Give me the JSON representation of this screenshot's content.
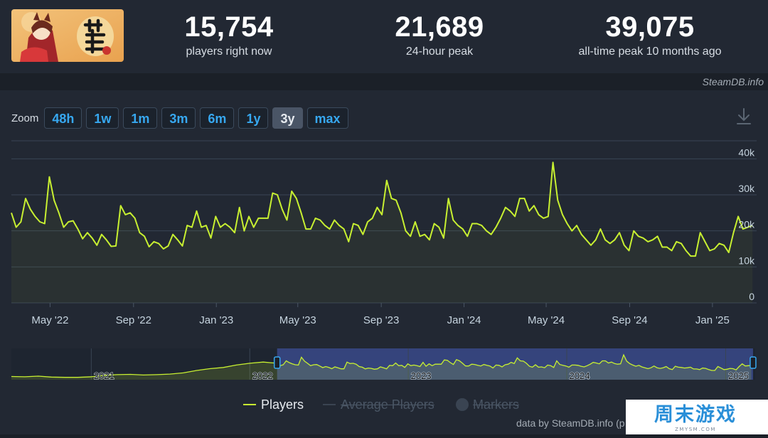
{
  "stats": {
    "current": {
      "value": "15,754",
      "label": "players right now"
    },
    "peak24": {
      "value": "21,689",
      "label": "24-hour peak"
    },
    "alltime": {
      "value": "39,075",
      "label": "all-time peak 10 months ago"
    }
  },
  "source_label": "SteamDB.info",
  "zoom": {
    "label": "Zoom",
    "options": [
      "48h",
      "1w",
      "1m",
      "3m",
      "6m",
      "1y",
      "3y",
      "max"
    ],
    "active": "3y"
  },
  "legend": {
    "players": "Players",
    "average": "Average Players",
    "markers": "Markers"
  },
  "credit": "data by SteamDB.info (p",
  "watermark": {
    "main": "周末游戏",
    "sub": "ZMYSM.COM"
  },
  "colors": {
    "players": "#c8f031",
    "accent_blue": "#37a8f0",
    "nav_selection": "#3a4a8a"
  },
  "icons": {
    "download": "download-icon"
  },
  "chart_data": {
    "type": "line",
    "title": "",
    "xlabel": "",
    "ylabel": "",
    "ylim": [
      0,
      45000
    ],
    "y_ticks": [
      0,
      10000,
      20000,
      30000,
      40000
    ],
    "y_tick_labels": [
      "0",
      "10k",
      "20k",
      "30k",
      "40k"
    ],
    "x_tick_labels": [
      {
        "date": "2022-05-01",
        "label": "May '22"
      },
      {
        "date": "2022-09-01",
        "label": "Sep '22"
      },
      {
        "date": "2023-01-01",
        "label": "Jan '23"
      },
      {
        "date": "2023-05-01",
        "label": "May '23"
      },
      {
        "date": "2023-09-01",
        "label": "Sep '23"
      },
      {
        "date": "2024-01-01",
        "label": "Jan '24"
      },
      {
        "date": "2024-05-01",
        "label": "May '24"
      },
      {
        "date": "2024-09-01",
        "label": "Sep '24"
      },
      {
        "date": "2025-01-01",
        "label": "Jan '25"
      }
    ],
    "x_range": [
      "2022-03-05",
      "2025-03-05"
    ],
    "grid": true,
    "legend_position": "bottom",
    "series": [
      {
        "name": "Players",
        "color": "#c8f031",
        "points": [
          [
            "2022-03-05",
            25000
          ],
          [
            "2022-03-12",
            21000
          ],
          [
            "2022-03-19",
            22500
          ],
          [
            "2022-03-26",
            29000
          ],
          [
            "2022-04-02",
            26000
          ],
          [
            "2022-04-09",
            24000
          ],
          [
            "2022-04-16",
            22500
          ],
          [
            "2022-04-23",
            22000
          ],
          [
            "2022-04-30",
            35000
          ],
          [
            "2022-05-07",
            28500
          ],
          [
            "2022-05-14",
            25000
          ],
          [
            "2022-05-21",
            21000
          ],
          [
            "2022-05-28",
            22500
          ],
          [
            "2022-06-04",
            22800
          ],
          [
            "2022-06-11",
            20500
          ],
          [
            "2022-06-18",
            17800
          ],
          [
            "2022-06-25",
            19500
          ],
          [
            "2022-07-02",
            18000
          ],
          [
            "2022-07-09",
            16000
          ],
          [
            "2022-07-16",
            19000
          ],
          [
            "2022-07-23",
            17500
          ],
          [
            "2022-07-30",
            15700
          ],
          [
            "2022-08-06",
            15800
          ],
          [
            "2022-08-13",
            27000
          ],
          [
            "2022-08-20",
            24500
          ],
          [
            "2022-08-27",
            25000
          ],
          [
            "2022-09-03",
            23500
          ],
          [
            "2022-09-10",
            19500
          ],
          [
            "2022-09-17",
            18500
          ],
          [
            "2022-09-24",
            15600
          ],
          [
            "2022-10-01",
            17000
          ],
          [
            "2022-10-08",
            16500
          ],
          [
            "2022-10-15",
            15000
          ],
          [
            "2022-10-22",
            15800
          ],
          [
            "2022-10-29",
            19000
          ],
          [
            "2022-11-05",
            17500
          ],
          [
            "2022-11-12",
            15800
          ],
          [
            "2022-11-19",
            21500
          ],
          [
            "2022-11-26",
            21000
          ],
          [
            "2022-12-03",
            25500
          ],
          [
            "2022-12-10",
            21000
          ],
          [
            "2022-12-17",
            21500
          ],
          [
            "2022-12-24",
            18000
          ],
          [
            "2022-12-31",
            24000
          ],
          [
            "2023-01-07",
            21000
          ],
          [
            "2023-01-14",
            22000
          ],
          [
            "2023-01-21",
            21000
          ],
          [
            "2023-01-28",
            19500
          ],
          [
            "2023-02-04",
            26500
          ],
          [
            "2023-02-11",
            20000
          ],
          [
            "2023-02-18",
            24000
          ],
          [
            "2023-02-25",
            21000
          ],
          [
            "2023-03-04",
            23500
          ],
          [
            "2023-03-11",
            23500
          ],
          [
            "2023-03-18",
            23500
          ],
          [
            "2023-03-25",
            30500
          ],
          [
            "2023-04-01",
            30000
          ],
          [
            "2023-04-08",
            26000
          ],
          [
            "2023-04-15",
            23000
          ],
          [
            "2023-04-22",
            31000
          ],
          [
            "2023-04-29",
            29000
          ],
          [
            "2023-05-06",
            25000
          ],
          [
            "2023-05-13",
            20500
          ],
          [
            "2023-05-20",
            20500
          ],
          [
            "2023-05-27",
            23500
          ],
          [
            "2023-06-03",
            23000
          ],
          [
            "2023-06-10",
            21500
          ],
          [
            "2023-06-17",
            20500
          ],
          [
            "2023-06-24",
            23000
          ],
          [
            "2023-07-01",
            21500
          ],
          [
            "2023-07-08",
            20500
          ],
          [
            "2023-07-15",
            17000
          ],
          [
            "2023-07-22",
            22000
          ],
          [
            "2023-07-29",
            21500
          ],
          [
            "2023-08-05",
            19000
          ],
          [
            "2023-08-12",
            22500
          ],
          [
            "2023-08-19",
            23500
          ],
          [
            "2023-08-26",
            26500
          ],
          [
            "2023-09-02",
            24500
          ],
          [
            "2023-09-09",
            34000
          ],
          [
            "2023-09-16",
            29000
          ],
          [
            "2023-09-23",
            28500
          ],
          [
            "2023-09-30",
            25000
          ],
          [
            "2023-10-07",
            20000
          ],
          [
            "2023-10-14",
            18500
          ],
          [
            "2023-10-21",
            22500
          ],
          [
            "2023-10-28",
            18500
          ],
          [
            "2023-11-04",
            19000
          ],
          [
            "2023-11-11",
            17500
          ],
          [
            "2023-11-18",
            22000
          ],
          [
            "2023-11-25",
            21000
          ],
          [
            "2023-12-02",
            18000
          ],
          [
            "2023-12-09",
            29000
          ],
          [
            "2023-12-16",
            23000
          ],
          [
            "2023-12-23",
            21500
          ],
          [
            "2023-12-30",
            20500
          ],
          [
            "2024-01-06",
            18500
          ],
          [
            "2024-01-13",
            22000
          ],
          [
            "2024-01-20",
            22000
          ],
          [
            "2024-01-27",
            21500
          ],
          [
            "2024-02-03",
            20000
          ],
          [
            "2024-02-10",
            19000
          ],
          [
            "2024-02-17",
            21000
          ],
          [
            "2024-02-24",
            23500
          ],
          [
            "2024-03-02",
            26500
          ],
          [
            "2024-03-09",
            25500
          ],
          [
            "2024-03-16",
            24000
          ],
          [
            "2024-03-23",
            29000
          ],
          [
            "2024-03-30",
            29000
          ],
          [
            "2024-04-06",
            25500
          ],
          [
            "2024-04-13",
            27000
          ],
          [
            "2024-04-20",
            24500
          ],
          [
            "2024-04-27",
            23500
          ],
          [
            "2024-05-04",
            24000
          ],
          [
            "2024-05-11",
            39000
          ],
          [
            "2024-05-18",
            28500
          ],
          [
            "2024-05-25",
            24500
          ],
          [
            "2024-06-01",
            22000
          ],
          [
            "2024-06-08",
            20000
          ],
          [
            "2024-06-15",
            21500
          ],
          [
            "2024-06-22",
            19000
          ],
          [
            "2024-06-29",
            17500
          ],
          [
            "2024-07-06",
            16000
          ],
          [
            "2024-07-13",
            17500
          ],
          [
            "2024-07-20",
            20500
          ],
          [
            "2024-07-27",
            17500
          ],
          [
            "2024-08-03",
            16500
          ],
          [
            "2024-08-10",
            17500
          ],
          [
            "2024-08-17",
            19500
          ],
          [
            "2024-08-24",
            16000
          ],
          [
            "2024-08-31",
            14500
          ],
          [
            "2024-09-07",
            20000
          ],
          [
            "2024-09-14",
            18500
          ],
          [
            "2024-09-21",
            18000
          ],
          [
            "2024-09-28",
            17000
          ],
          [
            "2024-10-05",
            17500
          ],
          [
            "2024-10-12",
            18500
          ],
          [
            "2024-10-19",
            15500
          ],
          [
            "2024-10-26",
            15500
          ],
          [
            "2024-11-02",
            14500
          ],
          [
            "2024-11-09",
            17000
          ],
          [
            "2024-11-16",
            16500
          ],
          [
            "2024-11-23",
            14500
          ],
          [
            "2024-11-30",
            13000
          ],
          [
            "2024-12-07",
            13000
          ],
          [
            "2024-12-14",
            19500
          ],
          [
            "2024-12-21",
            17000
          ],
          [
            "2024-12-28",
            14500
          ],
          [
            "2025-01-04",
            15000
          ],
          [
            "2025-01-11",
            16500
          ],
          [
            "2025-01-18",
            16000
          ],
          [
            "2025-01-25",
            14000
          ],
          [
            "2025-02-01",
            19500
          ],
          [
            "2025-02-08",
            24000
          ],
          [
            "2025-02-15",
            20500
          ],
          [
            "2025-02-22",
            21000
          ],
          [
            "2025-03-01",
            21500
          ]
        ]
      }
    ],
    "navigator": {
      "x_range": [
        "2020-07-01",
        "2025-03-10"
      ],
      "selection": [
        "2022-03-05",
        "2025-03-05"
      ],
      "year_labels": [
        {
          "date": "2021-01-01",
          "label": "2021"
        },
        {
          "date": "2022-01-01",
          "label": "2022"
        },
        {
          "date": "2023-01-01",
          "label": "2023"
        },
        {
          "date": "2024-01-01",
          "label": "2024"
        },
        {
          "date": "2025-01-01",
          "label": "2025"
        }
      ],
      "early_points": [
        [
          "2020-07-01",
          3000
        ],
        [
          "2020-08-01",
          2500
        ],
        [
          "2020-09-01",
          3500
        ],
        [
          "2020-10-01",
          2000
        ],
        [
          "2020-11-01",
          1500
        ],
        [
          "2020-12-01",
          1500
        ],
        [
          "2021-01-01",
          2500
        ],
        [
          "2021-02-01",
          5000
        ],
        [
          "2021-03-01",
          6000
        ],
        [
          "2021-04-01",
          6500
        ],
        [
          "2021-05-01",
          5500
        ],
        [
          "2021-06-01",
          6000
        ],
        [
          "2021-07-01",
          7000
        ],
        [
          "2021-08-01",
          9000
        ],
        [
          "2021-09-01",
          13000
        ],
        [
          "2021-10-01",
          16000
        ],
        [
          "2021-11-01",
          18000
        ],
        [
          "2021-12-01",
          22000
        ],
        [
          "2022-01-01",
          25000
        ],
        [
          "2022-02-01",
          27000
        ]
      ]
    }
  }
}
